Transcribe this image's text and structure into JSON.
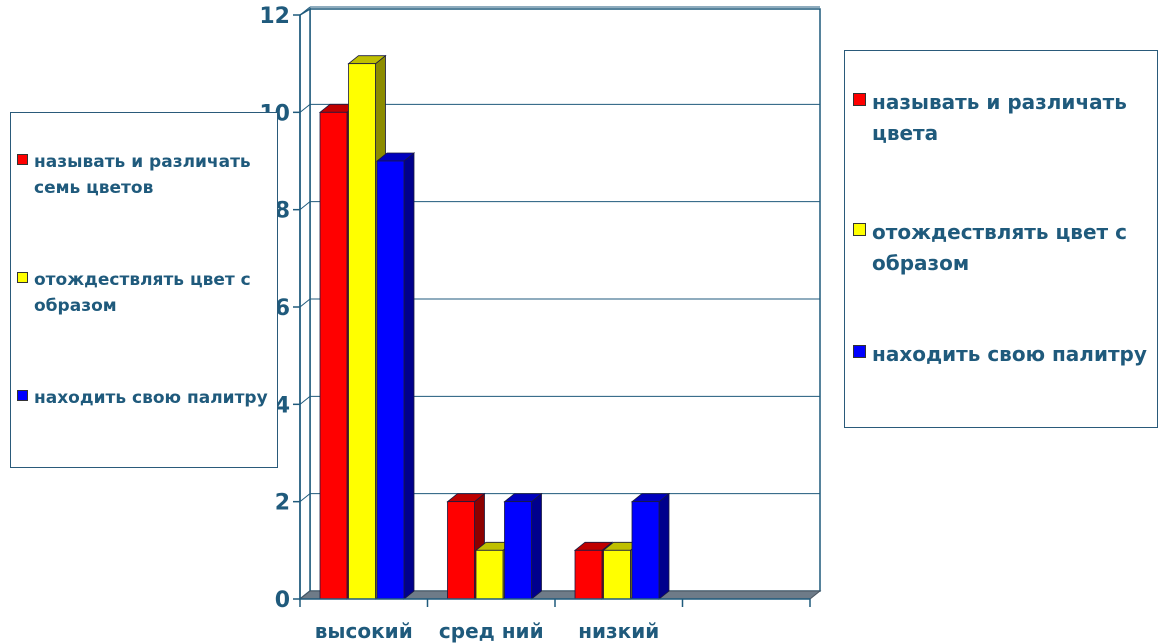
{
  "chart_data": {
    "type": "bar",
    "categories": [
      "высокий",
      "сред ний",
      "низкий"
    ],
    "series": [
      {
        "name": "называть и различать семь цветов",
        "values": [
          10,
          2,
          1
        ],
        "color": "#ff0000"
      },
      {
        "name": "отождествлять цвет с образом",
        "values": [
          11,
          1,
          1
        ],
        "color": "#ffff00"
      },
      {
        "name": "находить свою палитру",
        "values": [
          9,
          2,
          2
        ],
        "color": "#0000ff"
      }
    ],
    "ylim": [
      0,
      12
    ],
    "y_ticks": [
      "0",
      "2",
      "4",
      "6",
      "8",
      "10",
      "12"
    ],
    "grid": true,
    "three_d": true
  },
  "legend_left": {
    "items": [
      {
        "label": "называть и различать семь цветов",
        "color": "#ff0000"
      },
      {
        "label": "отождествлять цвет с образом",
        "color": "#ffff00"
      },
      {
        "label": "находить свою палитру",
        "color": "#0000ff"
      }
    ]
  },
  "legend_right": {
    "items": [
      {
        "label": "называть и различать цвета",
        "color": "#ff0000"
      },
      {
        "label": "отождествлять цвет с образом",
        "color": "#ffff00"
      },
      {
        "label": "находить свою палитру",
        "color": "#0000ff"
      }
    ]
  }
}
